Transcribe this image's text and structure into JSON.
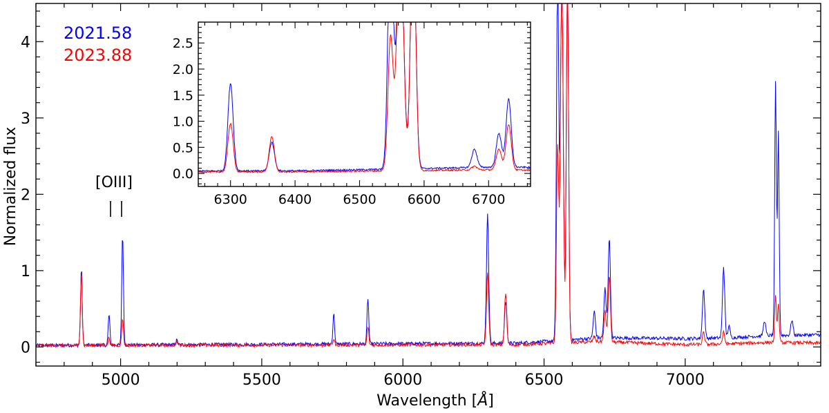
{
  "chart_data": [
    {
      "type": "line",
      "xlabel": "Wavelength [",
      "xlabel_unit": "Å",
      "xlabel_close": "]",
      "ylabel": "Normalized flux",
      "xlim": [
        4700,
        7480
      ],
      "ylim": [
        -0.25,
        4.5
      ],
      "xticks": [
        5000,
        5500,
        6000,
        6500,
        7000
      ],
      "yticks": [
        0,
        1,
        2,
        3,
        4
      ],
      "grid": false,
      "legend_position": "top-left",
      "series": [
        {
          "name": "2021.58",
          "color": "#0000ff",
          "continuum": [
            [
              4700,
              0.02
            ],
            [
              6400,
              0.05
            ],
            [
              6540,
              0.08
            ],
            [
              6700,
              0.12
            ],
            [
              7000,
              0.11
            ],
            [
              7150,
              0.12
            ],
            [
              7300,
              0.15
            ],
            [
              7480,
              0.16
            ]
          ],
          "lines": [
            [
              4861,
              1.0,
              3
            ],
            [
              4959,
              0.4,
              3
            ],
            [
              5007,
              1.45,
              3
            ],
            [
              5199,
              0.06,
              3
            ],
            [
              5755,
              0.4,
              3
            ],
            [
              5876,
              0.6,
              3
            ],
            [
              6300,
              1.68,
              4
            ],
            [
              6364,
              0.55,
              4
            ],
            [
              6548,
              4.8,
              4
            ],
            [
              6563,
              4.8,
              5
            ],
            [
              6583,
              4.8,
              4
            ],
            [
              6678,
              0.35,
              4
            ],
            [
              6716,
              0.65,
              4
            ],
            [
              6731,
              1.3,
              4
            ],
            [
              7065,
              0.65,
              4
            ],
            [
              7136,
              0.93,
              4
            ],
            [
              7155,
              0.15,
              4
            ],
            [
              7281,
              0.2,
              4
            ],
            [
              7320,
              3.3,
              3
            ],
            [
              7330,
              2.65,
              3
            ],
            [
              7378,
              0.2,
              4
            ]
          ]
        },
        {
          "name": "2023.88",
          "color": "#ff0000",
          "continuum": [
            [
              4700,
              0.02
            ],
            [
              6400,
              0.03
            ],
            [
              6540,
              0.05
            ],
            [
              6700,
              0.07
            ],
            [
              7000,
              0.03
            ],
            [
              7150,
              0.04
            ],
            [
              7300,
              0.06
            ],
            [
              7480,
              0.05
            ]
          ],
          "lines": [
            [
              4861,
              0.98,
              3
            ],
            [
              4959,
              0.1,
              3
            ],
            [
              5007,
              0.36,
              3
            ],
            [
              5199,
              0.06,
              3
            ],
            [
              5755,
              0.08,
              3
            ],
            [
              5876,
              0.24,
              3
            ],
            [
              6300,
              0.93,
              4
            ],
            [
              6364,
              0.67,
              4
            ],
            [
              6548,
              2.55,
              4
            ],
            [
              6563,
              4.8,
              5
            ],
            [
              6583,
              4.8,
              4
            ],
            [
              6678,
              0.07,
              4
            ],
            [
              6716,
              0.4,
              4
            ],
            [
              6731,
              0.88,
              4
            ],
            [
              7065,
              0.15,
              4
            ],
            [
              7136,
              0.15,
              4
            ],
            [
              7320,
              0.6,
              3
            ],
            [
              7330,
              0.5,
              3
            ]
          ]
        }
      ],
      "annotations": [
        {
          "text": "[OIII]",
          "x_range": [
            4959,
            5007
          ],
          "y": 2.2
        }
      ]
    },
    {
      "type": "line",
      "position": "inset",
      "xlim": [
        6250,
        6765
      ],
      "ylim": [
        -0.25,
        2.9
      ],
      "xticks": [
        6300,
        6400,
        6500,
        6600,
        6700
      ],
      "yticks": [
        0.0,
        0.5,
        1.0,
        1.5,
        2.0,
        2.5
      ],
      "ytick_labels": [
        "0.0",
        "0.5",
        "1.0",
        "1.5",
        "2.0",
        "2.5"
      ],
      "series_names": [
        "2021.58",
        "2023.88"
      ]
    }
  ]
}
